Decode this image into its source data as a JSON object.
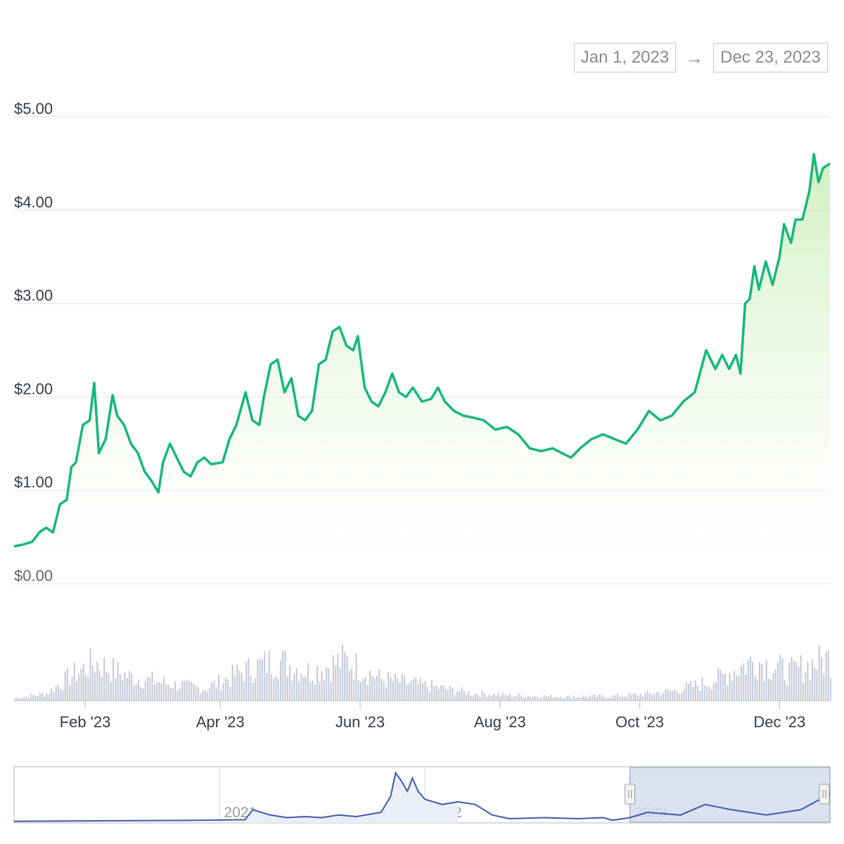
{
  "date_range": {
    "from": "Jan 1, 2023",
    "arrow": "→",
    "to": "Dec 23, 2023"
  },
  "colors": {
    "price_line": "#16b77e",
    "area_fill_top": "#cbeeb8",
    "volume_bar": "#c3c9d6",
    "navigator_line": "#3b5ba9",
    "navigator_selection": "#d4dcec",
    "grid": "#e6e6e6"
  },
  "chart_data": {
    "type": "area",
    "title": "",
    "xlabel": "",
    "ylabel": "",
    "ylim": [
      0,
      5
    ],
    "y_ticks": [
      "$0.00",
      "$1.00",
      "$2.00",
      "$3.00",
      "$4.00",
      "$5.00"
    ],
    "x_ticks": [
      "Feb '23",
      "Apr '23",
      "Jun '23",
      "Aug '23",
      "Oct '23",
      "Dec '23"
    ],
    "xlim": [
      "2023-01-01",
      "2023-12-23"
    ],
    "grid": true,
    "series": [
      {
        "values": [
          [
            "2023-01-01",
            0.4
          ],
          [
            "2023-01-05",
            0.42
          ],
          [
            "2023-01-09",
            0.45
          ],
          [
            "2023-01-12",
            0.55
          ],
          [
            "2023-01-15",
            0.6
          ],
          [
            "2023-01-18",
            0.55
          ],
          [
            "2023-01-21",
            0.85
          ],
          [
            "2023-01-24",
            0.9
          ],
          [
            "2023-01-26",
            1.25
          ],
          [
            "2023-01-28",
            1.3
          ],
          [
            "2023-01-31",
            1.7
          ],
          [
            "2023-02-03",
            1.75
          ],
          [
            "2023-02-05",
            2.15
          ],
          [
            "2023-02-07",
            1.4
          ],
          [
            "2023-02-10",
            1.55
          ],
          [
            "2023-02-13",
            2.02
          ],
          [
            "2023-02-15",
            1.8
          ],
          [
            "2023-02-18",
            1.7
          ],
          [
            "2023-02-21",
            1.5
          ],
          [
            "2023-02-24",
            1.4
          ],
          [
            "2023-02-27",
            1.2
          ],
          [
            "2023-03-02",
            1.1
          ],
          [
            "2023-03-05",
            0.98
          ],
          [
            "2023-03-07",
            1.3
          ],
          [
            "2023-03-10",
            1.5
          ],
          [
            "2023-03-13",
            1.35
          ],
          [
            "2023-03-16",
            1.2
          ],
          [
            "2023-03-19",
            1.15
          ],
          [
            "2023-03-22",
            1.3
          ],
          [
            "2023-03-25",
            1.35
          ],
          [
            "2023-03-28",
            1.28
          ],
          [
            "2023-04-02",
            1.3
          ],
          [
            "2023-04-05",
            1.55
          ],
          [
            "2023-04-08",
            1.7
          ],
          [
            "2023-04-12",
            2.05
          ],
          [
            "2023-04-15",
            1.75
          ],
          [
            "2023-04-18",
            1.7
          ],
          [
            "2023-04-20",
            2.0
          ],
          [
            "2023-04-23",
            2.35
          ],
          [
            "2023-04-26",
            2.4
          ],
          [
            "2023-04-29",
            2.05
          ],
          [
            "2023-05-02",
            2.2
          ],
          [
            "2023-05-05",
            1.8
          ],
          [
            "2023-05-08",
            1.75
          ],
          [
            "2023-05-11",
            1.85
          ],
          [
            "2023-05-14",
            2.35
          ],
          [
            "2023-05-17",
            2.4
          ],
          [
            "2023-05-20",
            2.7
          ],
          [
            "2023-05-23",
            2.75
          ],
          [
            "2023-05-26",
            2.55
          ],
          [
            "2023-05-29",
            2.5
          ],
          [
            "2023-05-31",
            2.65
          ],
          [
            "2023-06-03",
            2.1
          ],
          [
            "2023-06-06",
            1.95
          ],
          [
            "2023-06-09",
            1.9
          ],
          [
            "2023-06-12",
            2.05
          ],
          [
            "2023-06-15",
            2.25
          ],
          [
            "2023-06-18",
            2.05
          ],
          [
            "2023-06-21",
            2.0
          ],
          [
            "2023-06-24",
            2.1
          ],
          [
            "2023-06-28",
            1.95
          ],
          [
            "2023-07-02",
            1.98
          ],
          [
            "2023-07-05",
            2.1
          ],
          [
            "2023-07-08",
            1.95
          ],
          [
            "2023-07-12",
            1.85
          ],
          [
            "2023-07-16",
            1.8
          ],
          [
            "2023-07-20",
            1.78
          ],
          [
            "2023-07-25",
            1.75
          ],
          [
            "2023-07-30",
            1.65
          ],
          [
            "2023-08-04",
            1.68
          ],
          [
            "2023-08-09",
            1.6
          ],
          [
            "2023-08-14",
            1.45
          ],
          [
            "2023-08-19",
            1.42
          ],
          [
            "2023-08-24",
            1.45
          ],
          [
            "2023-08-28",
            1.4
          ],
          [
            "2023-09-01",
            1.35
          ],
          [
            "2023-09-05",
            1.45
          ],
          [
            "2023-09-10",
            1.55
          ],
          [
            "2023-09-15",
            1.6
          ],
          [
            "2023-09-20",
            1.55
          ],
          [
            "2023-09-25",
            1.5
          ],
          [
            "2023-09-30",
            1.65
          ],
          [
            "2023-10-05",
            1.85
          ],
          [
            "2023-10-10",
            1.75
          ],
          [
            "2023-10-15",
            1.8
          ],
          [
            "2023-10-20",
            1.95
          ],
          [
            "2023-10-25",
            2.05
          ],
          [
            "2023-10-30",
            2.5
          ],
          [
            "2023-11-03",
            2.3
          ],
          [
            "2023-11-06",
            2.45
          ],
          [
            "2023-11-09",
            2.3
          ],
          [
            "2023-11-12",
            2.45
          ],
          [
            "2023-11-14",
            2.25
          ],
          [
            "2023-11-16",
            3.0
          ],
          [
            "2023-11-18",
            3.05
          ],
          [
            "2023-11-20",
            3.4
          ],
          [
            "2023-11-22",
            3.15
          ],
          [
            "2023-11-25",
            3.45
          ],
          [
            "2023-11-28",
            3.2
          ],
          [
            "2023-12-01",
            3.5
          ],
          [
            "2023-12-03",
            3.85
          ],
          [
            "2023-12-06",
            3.65
          ],
          [
            "2023-12-08",
            3.9
          ],
          [
            "2023-12-11",
            3.9
          ],
          [
            "2023-12-14",
            4.2
          ],
          [
            "2023-12-16",
            4.6
          ],
          [
            "2023-12-18",
            4.3
          ],
          [
            "2023-12-20",
            4.45
          ],
          [
            "2023-12-23",
            4.5
          ]
        ]
      }
    ],
    "volume_envelope": [
      [
        "2023-01-01",
        0.05
      ],
      [
        "2023-01-15",
        0.15
      ],
      [
        "2023-01-25",
        0.5
      ],
      [
        "2023-02-05",
        0.8
      ],
      [
        "2023-02-20",
        0.5
      ],
      [
        "2023-03-10",
        0.35
      ],
      [
        "2023-03-25",
        0.25
      ],
      [
        "2023-04-10",
        0.6
      ],
      [
        "2023-04-25",
        0.85
      ],
      [
        "2023-05-10",
        0.6
      ],
      [
        "2023-05-25",
        0.85
      ],
      [
        "2023-06-10",
        0.45
      ],
      [
        "2023-07-01",
        0.3
      ],
      [
        "2023-07-20",
        0.15
      ],
      [
        "2023-08-10",
        0.1
      ],
      [
        "2023-09-01",
        0.08
      ],
      [
        "2023-09-25",
        0.1
      ],
      [
        "2023-10-15",
        0.2
      ],
      [
        "2023-11-01",
        0.4
      ],
      [
        "2023-11-20",
        0.85
      ],
      [
        "2023-12-05",
        0.6
      ],
      [
        "2023-12-23",
        0.9
      ]
    ],
    "navigator": {
      "x_ticks": [
        "2021",
        "2022",
        "2023"
      ],
      "selected_range": [
        "2023-01-01",
        "2023-12-23"
      ],
      "values": [
        [
          "2020-01-01",
          0.03
        ],
        [
          "2020-06-01",
          0.04
        ],
        [
          "2020-12-01",
          0.05
        ],
        [
          "2021-02-15",
          0.06
        ],
        [
          "2021-03-01",
          0.25
        ],
        [
          "2021-04-01",
          0.15
        ],
        [
          "2021-05-01",
          0.1
        ],
        [
          "2021-06-01",
          0.12
        ],
        [
          "2021-07-01",
          0.1
        ],
        [
          "2021-08-01",
          0.15
        ],
        [
          "2021-09-01",
          0.12
        ],
        [
          "2021-10-15",
          0.2
        ],
        [
          "2021-11-01",
          0.5
        ],
        [
          "2021-11-10",
          0.95
        ],
        [
          "2021-11-20",
          0.8
        ],
        [
          "2021-12-01",
          0.6
        ],
        [
          "2021-12-10",
          0.85
        ],
        [
          "2021-12-20",
          0.6
        ],
        [
          "2022-01-01",
          0.45
        ],
        [
          "2022-02-01",
          0.35
        ],
        [
          "2022-03-01",
          0.4
        ],
        [
          "2022-04-01",
          0.35
        ],
        [
          "2022-05-01",
          0.15
        ],
        [
          "2022-06-01",
          0.08
        ],
        [
          "2022-08-01",
          0.1
        ],
        [
          "2022-10-01",
          0.08
        ],
        [
          "2022-11-15",
          0.1
        ],
        [
          "2022-12-01",
          0.05
        ],
        [
          "2023-01-01",
          0.1
        ],
        [
          "2023-02-01",
          0.2
        ],
        [
          "2023-04-01",
          0.15
        ],
        [
          "2023-05-15",
          0.35
        ],
        [
          "2023-07-01",
          0.25
        ],
        [
          "2023-09-01",
          0.15
        ],
        [
          "2023-11-01",
          0.25
        ],
        [
          "2023-12-23",
          0.55
        ]
      ]
    }
  }
}
